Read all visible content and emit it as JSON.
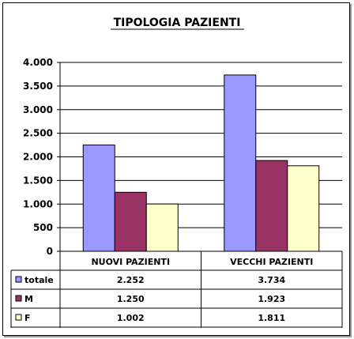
{
  "chart_data": {
    "type": "bar",
    "title": "TIPOLOGIA PAZIENTI",
    "categories": [
      "NUOVI PAZIENTI",
      "VECCHI PAZIENTI"
    ],
    "series": [
      {
        "name": "totale",
        "values": [
          2252,
          3734
        ],
        "labels": [
          "2.252",
          "3.734"
        ],
        "color": "#9999ff"
      },
      {
        "name": "M",
        "values": [
          1250,
          1923
        ],
        "labels": [
          "1.250",
          "1.923"
        ],
        "color": "#993366"
      },
      {
        "name": "F",
        "values": [
          1002,
          1811
        ],
        "labels": [
          "1.002",
          "1.811"
        ],
        "color": "#ffffcc"
      }
    ],
    "ylim": [
      0,
      4000
    ],
    "yticks": [
      0,
      500,
      1000,
      1500,
      2000,
      2500,
      3000,
      3500,
      4000
    ],
    "ytick_labels": [
      "0",
      "500",
      "1.000",
      "1.500",
      "2.000",
      "2.500",
      "3.000",
      "3.500",
      "4.000"
    ],
    "grid": true,
    "legend": "data-table-left"
  }
}
